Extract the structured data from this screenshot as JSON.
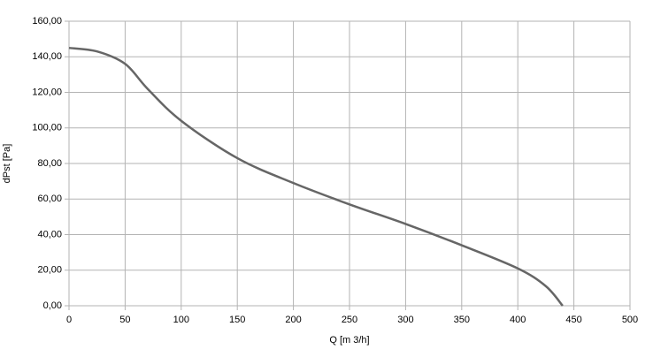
{
  "chart_data": {
    "type": "line",
    "xlabel": "Q [m 3/h]",
    "ylabel": "dPst [Pa]",
    "x": [
      0,
      25,
      50,
      70,
      100,
      150,
      200,
      250,
      300,
      350,
      400,
      425,
      440
    ],
    "series": [
      {
        "color": "#666666",
        "values": [
          145,
          143,
          136,
          122,
          104,
          83,
          69,
          57,
          46,
          34,
          21,
          11,
          0
        ]
      }
    ],
    "xlim": [
      0,
      500
    ],
    "xticks": [
      0,
      50,
      100,
      150,
      200,
      250,
      300,
      350,
      400,
      450,
      500
    ],
    "ylim": [
      0,
      160
    ],
    "yticks": [
      {
        "value": 0,
        "label": "0,00"
      },
      {
        "value": 20,
        "label": "20,00"
      },
      {
        "value": 40,
        "label": "40,00"
      },
      {
        "value": 60,
        "label": "60,00"
      },
      {
        "value": 80,
        "label": "80,00"
      },
      {
        "value": 100,
        "label": "100,00"
      },
      {
        "value": 120,
        "label": "120,00"
      },
      {
        "value": 140,
        "label": "140,00"
      },
      {
        "value": 160,
        "label": "160,00"
      }
    ],
    "grid": true
  }
}
